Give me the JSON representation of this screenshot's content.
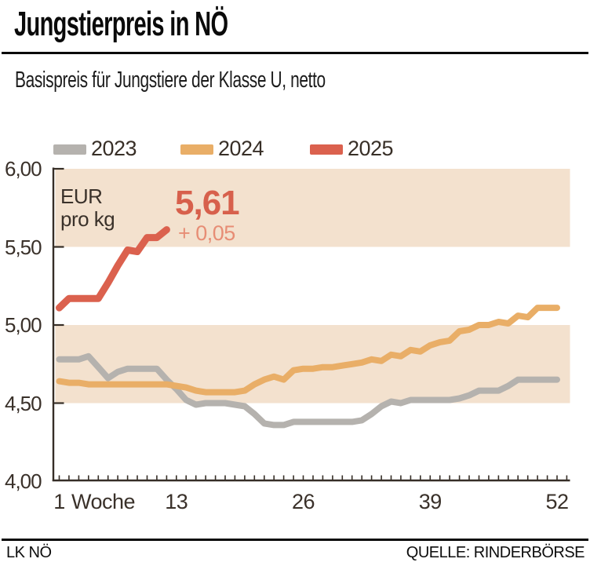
{
  "title": "Jungstierpreis in NÖ",
  "subtitle": "Basispreis für Jungstiere der Klasse U, netto",
  "unit_label": [
    "EUR",
    "pro kg"
  ],
  "footer": {
    "left": "LK NÖ",
    "right": "QUELLE: RINDERBÖRSE"
  },
  "colors": {
    "band": "#f3e1ce",
    "ink": "#362e27",
    "annotation_value": "#d7604c",
    "annotation_change": "#e78d75"
  },
  "chart_data": {
    "type": "line",
    "title": "Jungstierpreis in NÖ",
    "xlabel": "Woche",
    "ylabel": "EUR pro kg",
    "ylim": [
      4.0,
      6.0
    ],
    "xlim_weeks": [
      1,
      52
    ],
    "grid": false,
    "legend_position": "top",
    "bands": [
      {
        "from": 5.5,
        "to": 6.0
      },
      {
        "from": 4.5,
        "to": 5.0
      }
    ],
    "y_ticks": [
      {
        "label": "6,00",
        "value": 6.0
      },
      {
        "label": "5,50",
        "value": 5.5
      },
      {
        "label": "5,00",
        "value": 5.0
      },
      {
        "label": "4,50",
        "value": 4.5
      },
      {
        "label": "4,00",
        "value": 4.0
      }
    ],
    "x_ticks_labeled": [
      {
        "label": "1",
        "week": 1
      },
      {
        "label": "Woche",
        "week": 5.5
      },
      {
        "label": "13",
        "week": 13
      },
      {
        "label": "26",
        "week": 26
      },
      {
        "label": "39",
        "week": 39
      },
      {
        "label": "52",
        "week": 52
      }
    ],
    "x_minor_tick_every_week": true,
    "annotation": {
      "value": "5,61",
      "change": "+ 0,05",
      "series": "2025",
      "week": 12
    },
    "series": [
      {
        "name": "2023",
        "color": "#b5b2ae",
        "start_week": 1,
        "values": [
          4.78,
          4.78,
          4.78,
          4.8,
          4.73,
          4.66,
          4.7,
          4.72,
          4.72,
          4.72,
          4.72,
          4.65,
          4.59,
          4.52,
          4.49,
          4.5,
          4.5,
          4.5,
          4.49,
          4.48,
          4.43,
          4.37,
          4.36,
          4.36,
          4.38,
          4.38,
          4.38,
          4.38,
          4.38,
          4.38,
          4.38,
          4.39,
          4.43,
          4.48,
          4.51,
          4.5,
          4.52,
          4.52,
          4.52,
          4.52,
          4.52,
          4.53,
          4.55,
          4.58,
          4.58,
          4.58,
          4.61,
          4.65,
          4.65,
          4.65,
          4.65,
          4.65
        ]
      },
      {
        "name": "2024",
        "color": "#e9ae67",
        "start_week": 1,
        "values": [
          4.64,
          4.63,
          4.63,
          4.62,
          4.62,
          4.62,
          4.62,
          4.62,
          4.62,
          4.62,
          4.62,
          4.62,
          4.61,
          4.6,
          4.58,
          4.57,
          4.57,
          4.57,
          4.57,
          4.58,
          4.62,
          4.65,
          4.67,
          4.65,
          4.71,
          4.72,
          4.72,
          4.73,
          4.73,
          4.74,
          4.75,
          4.76,
          4.78,
          4.77,
          4.81,
          4.8,
          4.84,
          4.83,
          4.87,
          4.89,
          4.9,
          4.96,
          4.97,
          5.0,
          5.0,
          5.02,
          5.01,
          5.06,
          5.05,
          5.11,
          5.11,
          5.11
        ]
      },
      {
        "name": "2025",
        "color": "#db614e",
        "start_week": 1,
        "values": [
          5.11,
          5.17,
          5.17,
          5.17,
          5.17,
          5.27,
          5.38,
          5.48,
          5.47,
          5.56,
          5.56,
          5.61
        ]
      }
    ]
  }
}
